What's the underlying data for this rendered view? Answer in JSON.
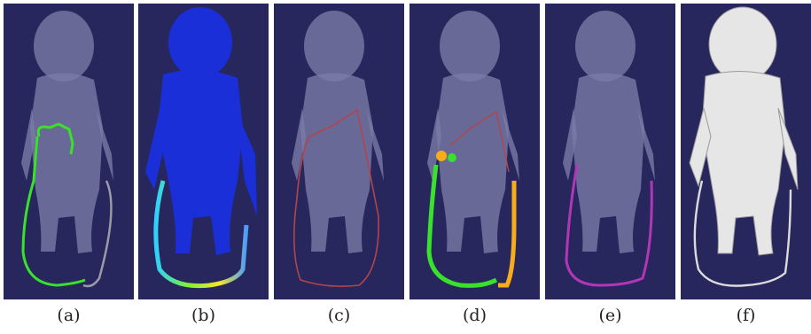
{
  "figure": {
    "background": "#27275e",
    "panels": [
      {
        "caption": "(a)",
        "body_style": "translucent",
        "overlay": "green partial loop"
      },
      {
        "caption": "(b)",
        "body_style": "heatmap",
        "overlay": "color-coded field"
      },
      {
        "caption": "(c)",
        "body_style": "translucent",
        "overlay": "thin red loop"
      },
      {
        "caption": "(d)",
        "body_style": "translucent",
        "overlay": "green and orange segments"
      },
      {
        "caption": "(e)",
        "body_style": "translucent",
        "overlay": "magenta loop"
      },
      {
        "caption": "(f)",
        "body_style": "solid white",
        "overlay": "dark loop"
      }
    ],
    "colors": {
      "body_translucent": "#7a7ba6",
      "heatmap_low": "#1a2fd8",
      "green": "#39e12a",
      "orange": "#f7ad1a",
      "magenta": "#b236b6",
      "red": "#b2454a",
      "white_body": "#e6e6e6"
    }
  }
}
